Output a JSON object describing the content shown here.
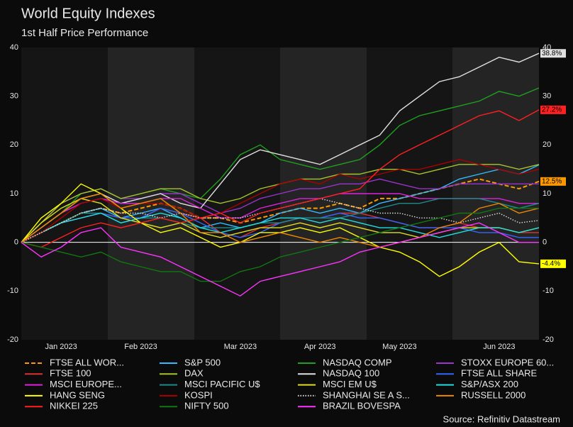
{
  "chart_data": {
    "type": "line",
    "title": "World Equity Indexes",
    "subtitle": "1st Half Price Performance",
    "source": "Source: Refinitiv Datastream",
    "categories": [
      null,
      null,
      "Jan 2023",
      null,
      null,
      null,
      "Feb 2023",
      null,
      null,
      null,
      null,
      "Mar 2023",
      null,
      null,
      null,
      "Apr 2023",
      null,
      null,
      null,
      "May 2023",
      null,
      null,
      null,
      null,
      "Jun 2023",
      null,
      null
    ],
    "ylim": [
      -20,
      40
    ],
    "yticks": [
      40,
      30,
      20,
      10,
      0,
      -10,
      -20
    ],
    "series": [
      {
        "name": "FTSE ALL WOR...",
        "color": "#ff9900",
        "dash": "dashed",
        "values": [
          0,
          2,
          4,
          6,
          7,
          6,
          7,
          8,
          7,
          5,
          5,
          4,
          5,
          6,
          7,
          7,
          8,
          7,
          9,
          9,
          10,
          11,
          12,
          13,
          12,
          11,
          12.5
        ],
        "value_labels": [
          null,
          null,
          null,
          null,
          null,
          null,
          null,
          null,
          null,
          null,
          null,
          null,
          null,
          null,
          null,
          null,
          null,
          null,
          null,
          null,
          null,
          null,
          null,
          null,
          null,
          null,
          "12.5%"
        ]
      },
      {
        "name": "S&P 500",
        "color": "#33bbff",
        "values": [
          0,
          2,
          4,
          6,
          7,
          5,
          6,
          7,
          5,
          3,
          4,
          3,
          4,
          6,
          7,
          6,
          7,
          6,
          8,
          9,
          10,
          11,
          13,
          14,
          15,
          14,
          15.9
        ]
      },
      {
        "name": "NASDAQ COMP",
        "color": "#1fa01f",
        "values": [
          0,
          3,
          6,
          10,
          11,
          9,
          10,
          11,
          10,
          9,
          13,
          18,
          20,
          17,
          16,
          15,
          16,
          17,
          20,
          24,
          26,
          27,
          28,
          29,
          31,
          30,
          31.7
        ]
      },
      {
        "name": "STOXX EUROPE 60...",
        "color": "#9933cc",
        "values": [
          0,
          4,
          8,
          10,
          11,
          9,
          9,
          10,
          10,
          8,
          6,
          7,
          9,
          10,
          11,
          11,
          12,
          12,
          13,
          12,
          11,
          11,
          12,
          12,
          12,
          12,
          12
        ]
      },
      {
        "name": "FTSE 100",
        "color": "#dd3333",
        "values": [
          0,
          2,
          4,
          5,
          6,
          5,
          5,
          7,
          6,
          5,
          2,
          1,
          3,
          4,
          5,
          5,
          6,
          6,
          5,
          4,
          3,
          3,
          4,
          3,
          3,
          2,
          2
        ]
      },
      {
        "name": "DAX",
        "color": "#a6c42c",
        "values": [
          0,
          4,
          8,
          10,
          11,
          9,
          10,
          11,
          11,
          9,
          8,
          9,
          11,
          12,
          13,
          13,
          14,
          14,
          15,
          15,
          14,
          15,
          16,
          16,
          16,
          15,
          16
        ]
      },
      {
        "name": "NASDAQ 100",
        "color": "#e0e0e0",
        "values": [
          0,
          3,
          6,
          9,
          10,
          8,
          9,
          10,
          8,
          7,
          12,
          17,
          19,
          18,
          17,
          16,
          18,
          20,
          22,
          27,
          30,
          33,
          34,
          36,
          38,
          37,
          38.8
        ],
        "value_labels": [
          null,
          null,
          null,
          null,
          null,
          null,
          null,
          null,
          null,
          null,
          null,
          null,
          null,
          null,
          null,
          null,
          null,
          null,
          null,
          null,
          null,
          null,
          null,
          null,
          null,
          null,
          "38.8%"
        ]
      },
      {
        "name": "FTSE ALL SHARE",
        "color": "#3366ff",
        "values": [
          0,
          2,
          4,
          5,
          6,
          5,
          5,
          7,
          6,
          4,
          2,
          1,
          2,
          4,
          5,
          5,
          6,
          5,
          5,
          4,
          3,
          3,
          3,
          2,
          2,
          1,
          1
        ]
      },
      {
        "name": "MSCI EUROPE...",
        "color": "#dd22dd",
        "values": [
          0,
          3,
          6,
          8,
          9,
          8,
          8,
          9,
          9,
          7,
          5,
          5,
          7,
          8,
          9,
          9,
          10,
          10,
          10,
          10,
          9,
          9,
          9,
          9,
          9,
          8,
          8
        ]
      },
      {
        "name": "MSCI PACIFIC U$",
        "color": "#1f8a8a",
        "values": [
          0,
          2,
          4,
          6,
          6,
          4,
          5,
          5,
          4,
          3,
          3,
          3,
          4,
          4,
          5,
          5,
          5,
          6,
          7,
          8,
          8,
          9,
          9,
          9,
          8,
          7,
          8
        ]
      },
      {
        "name": "MSCI EM U$",
        "color": "#dddd22",
        "values": [
          0,
          4,
          7,
          9,
          8,
          5,
          4,
          3,
          4,
          2,
          1,
          2,
          3,
          3,
          4,
          3,
          4,
          3,
          2,
          2,
          1,
          2,
          3,
          3,
          3,
          2,
          3
        ]
      },
      {
        "name": "S&P/ASX 200",
        "color": "#22dddd",
        "values": [
          0,
          2,
          4,
          5,
          6,
          4,
          5,
          6,
          5,
          3,
          2,
          3,
          4,
          5,
          5,
          4,
          5,
          4,
          3,
          3,
          2,
          1,
          2,
          3,
          3,
          2,
          3
        ]
      },
      {
        "name": "HANG SENG",
        "color": "#ffff00",
        "values": [
          0,
          5,
          8,
          12,
          10,
          7,
          4,
          2,
          3,
          1,
          -1,
          0,
          2,
          2,
          3,
          2,
          3,
          1,
          -1,
          -2,
          -4,
          -7,
          -5,
          -2,
          0,
          -4,
          -4.4
        ],
        "value_labels": [
          null,
          null,
          null,
          null,
          null,
          null,
          null,
          null,
          null,
          null,
          null,
          null,
          null,
          null,
          null,
          null,
          null,
          null,
          null,
          null,
          null,
          null,
          null,
          null,
          null,
          null,
          "-4.4%"
        ]
      },
      {
        "name": "KOSPI",
        "color": "#aa0000",
        "values": [
          0,
          2,
          5,
          8,
          9,
          7,
          8,
          8,
          7,
          5,
          6,
          8,
          10,
          12,
          13,
          12,
          14,
          13,
          14,
          15,
          15,
          16,
          17,
          16,
          15,
          14,
          15
        ]
      },
      {
        "name": "SHANGHAI SE A S...",
        "color": "#dddddd",
        "dash": "dotted",
        "values": [
          0,
          2,
          4,
          6,
          7,
          6,
          6,
          5,
          6,
          5,
          5,
          5,
          6,
          7,
          8,
          9,
          8,
          7,
          6,
          6,
          5,
          5,
          4,
          5,
          6,
          4,
          4.5
        ]
      },
      {
        "name": "RUSSELL 2000",
        "color": "#ee8800",
        "values": [
          0,
          3,
          6,
          9,
          10,
          7,
          8,
          9,
          6,
          2,
          2,
          0,
          1,
          2,
          1,
          0,
          1,
          0,
          -1,
          0,
          1,
          3,
          4,
          7,
          8,
          6,
          7
        ]
      },
      {
        "name": "NIKKEI 225",
        "color": "#ff2020",
        "values": [
          0,
          -1,
          1,
          3,
          4,
          3,
          4,
          5,
          4,
          5,
          6,
          4,
          6,
          7,
          8,
          9,
          10,
          11,
          15,
          18,
          20,
          22,
          24,
          26,
          27,
          25,
          27.2
        ],
        "value_labels": [
          null,
          null,
          null,
          null,
          null,
          null,
          null,
          null,
          null,
          null,
          null,
          null,
          null,
          null,
          null,
          null,
          null,
          null,
          null,
          null,
          null,
          null,
          null,
          null,
          null,
          null,
          "27.2%"
        ]
      },
      {
        "name": "NIFTY 500",
        "color": "#117711",
        "values": [
          0,
          -1,
          -2,
          -3,
          -2,
          -4,
          -5,
          -6,
          -6,
          -8,
          -8,
          -6,
          -5,
          -3,
          -2,
          -1,
          0,
          1,
          2,
          3,
          4,
          5,
          6,
          6,
          7,
          7,
          7
        ]
      },
      {
        "name": "BRAZIL BOVESPA",
        "color": "#ff33ff",
        "values": [
          0,
          -3,
          -1,
          2,
          3,
          -1,
          -2,
          -3,
          -5,
          -7,
          -9,
          -11,
          -8,
          -7,
          -6,
          -5,
          -4,
          -2,
          -1,
          0,
          1,
          2,
          3,
          4,
          2,
          0,
          0
        ]
      }
    ]
  }
}
